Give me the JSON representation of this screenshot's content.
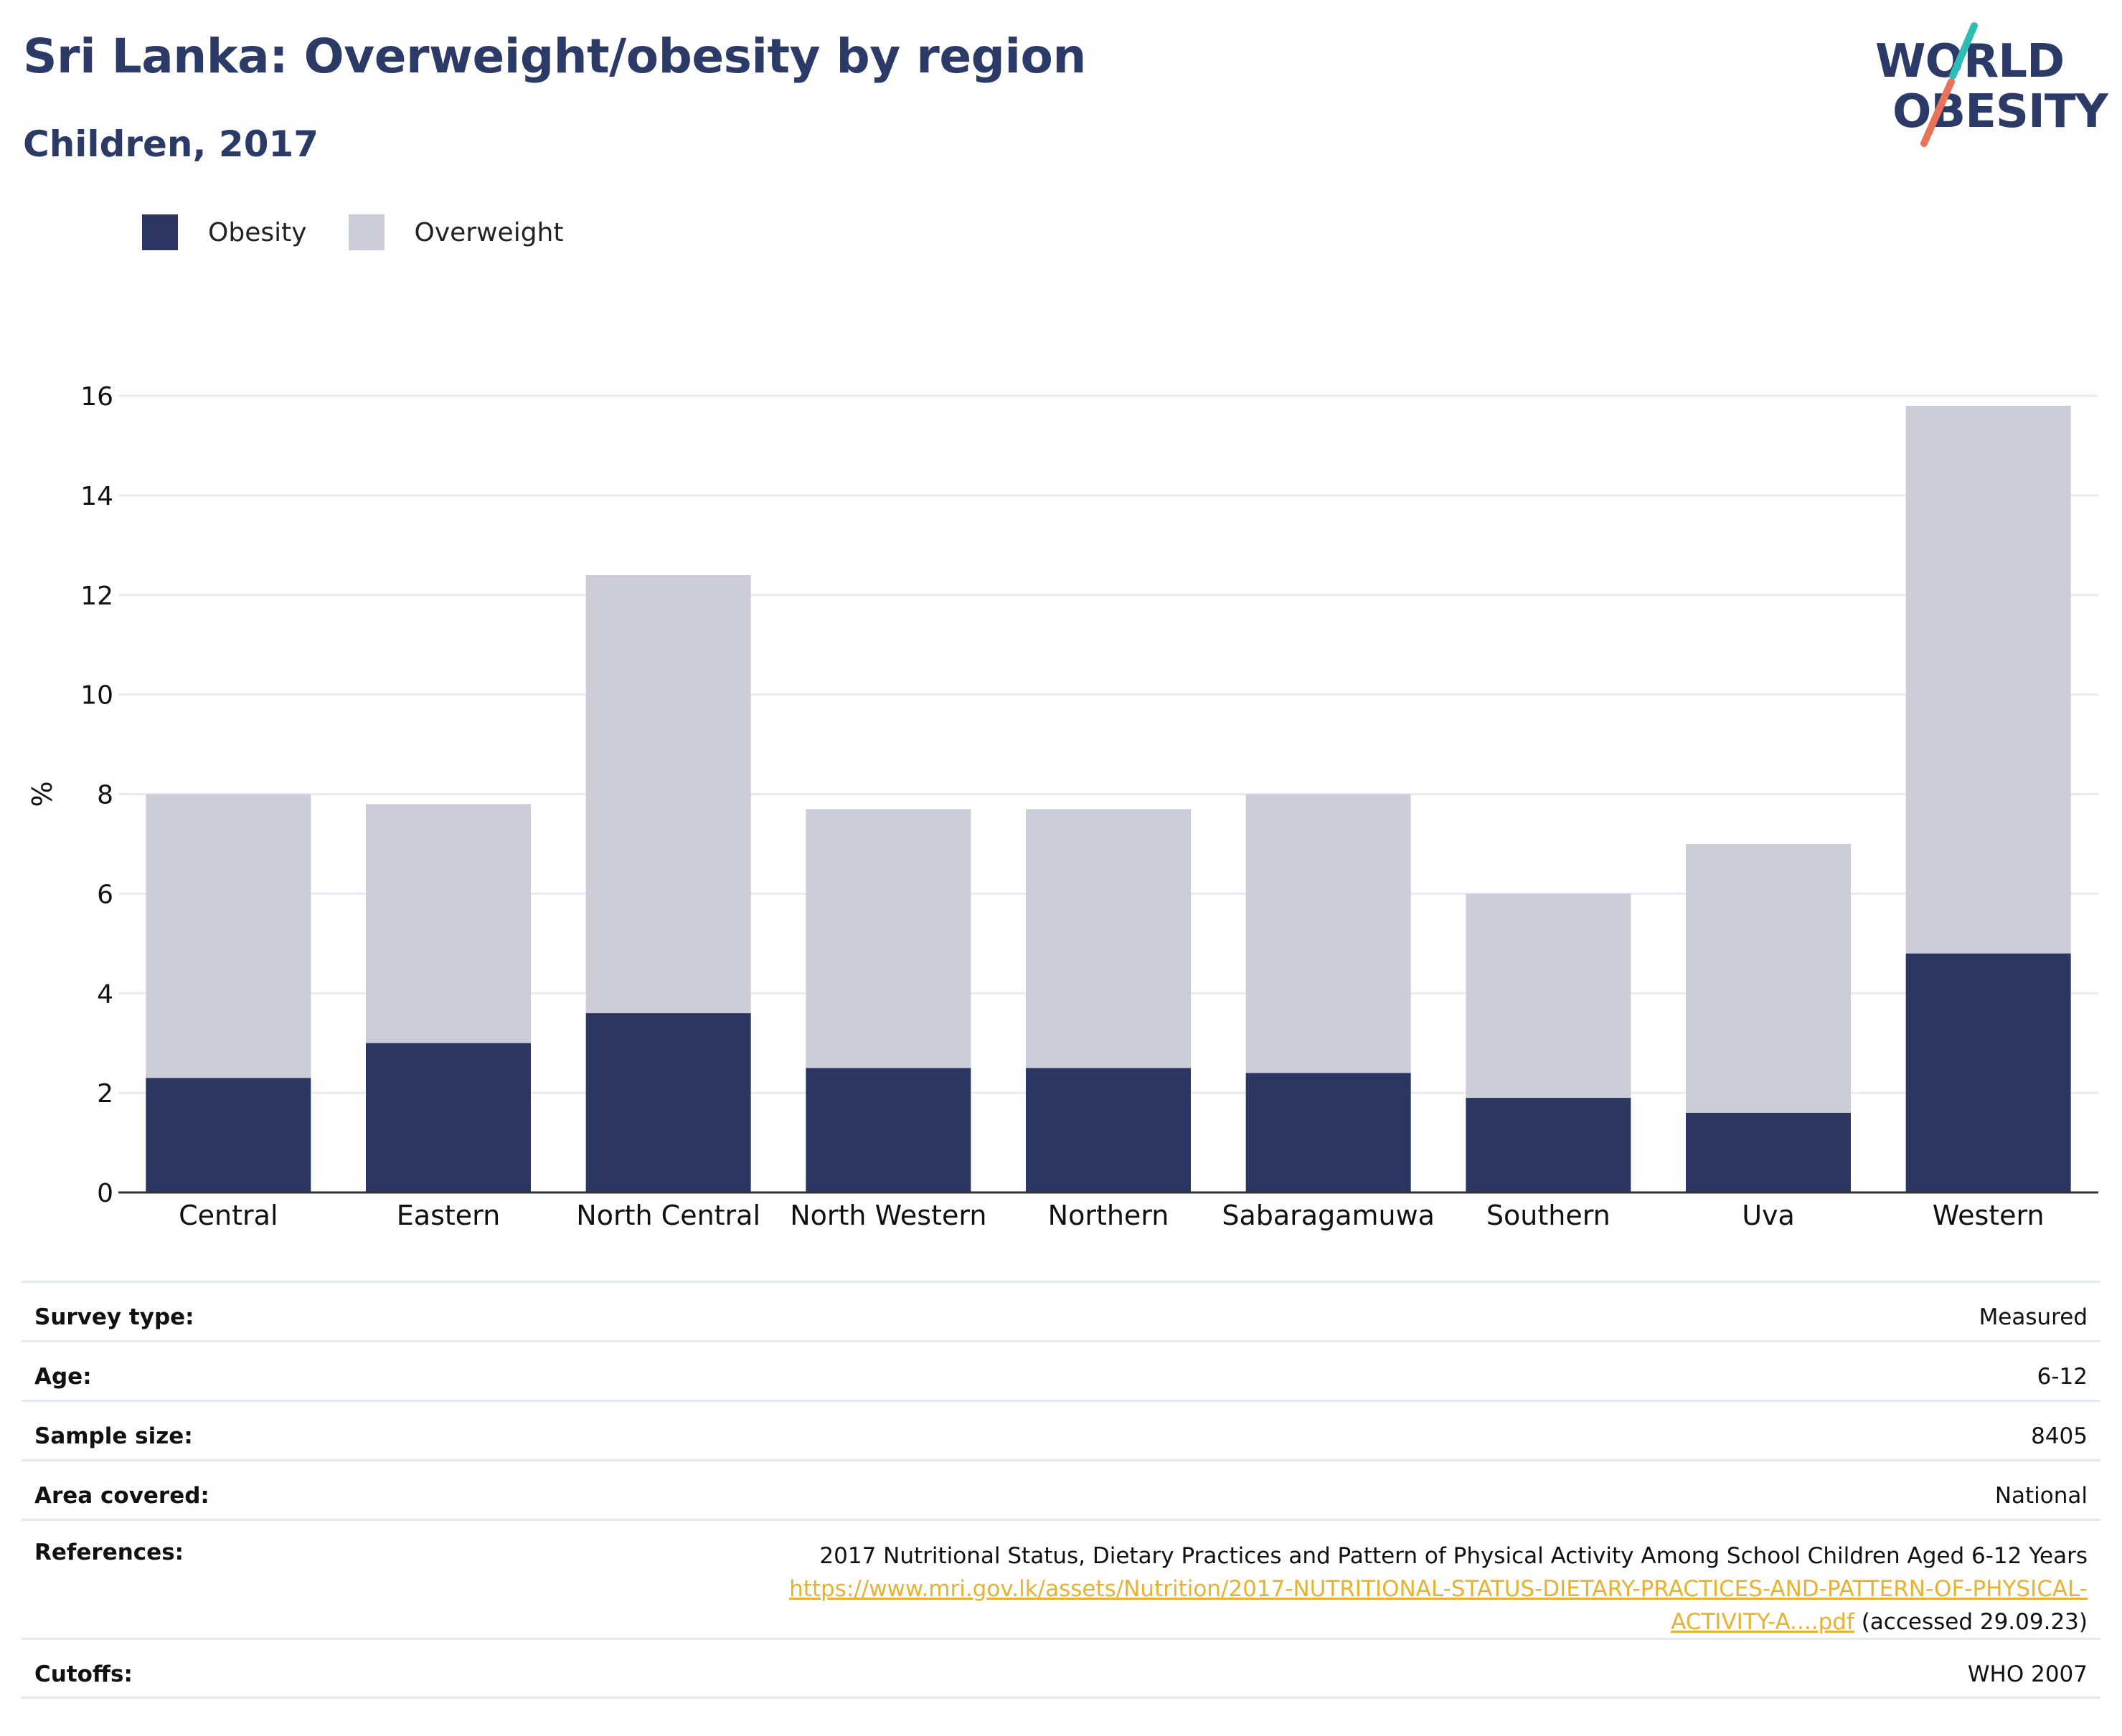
{
  "header": {
    "title": "Sri Lanka: Overweight/obesity by region",
    "subtitle": "Children, 2017"
  },
  "logo": {
    "line1": "WORLD",
    "line2": "OBESITY",
    "accent_colors": [
      "#2dbdb6",
      "#e8735a"
    ]
  },
  "colors": {
    "obesity": "#2b3663",
    "overweight": "#cbcdd9",
    "text": "#2b3a67",
    "link": "#e8b230"
  },
  "legend": [
    {
      "label": "Obesity",
      "color": "#2b3663"
    },
    {
      "label": "Overweight",
      "color": "#cbcdd9"
    }
  ],
  "chart_data": {
    "type": "bar",
    "stacked": true,
    "categories": [
      "Central",
      "Eastern",
      "North Central",
      "North Western",
      "Northern",
      "Sabaragamuwa",
      "Southern",
      "Uva",
      "Western"
    ],
    "series": [
      {
        "name": "Obesity",
        "values": [
          2.3,
          3.0,
          3.6,
          2.5,
          2.5,
          2.4,
          1.9,
          1.6,
          4.8
        ]
      },
      {
        "name": "Overweight",
        "values": [
          5.7,
          4.8,
          8.8,
          5.2,
          5.2,
          5.6,
          4.1,
          5.4,
          11.0
        ]
      }
    ],
    "totals": [
      8.0,
      7.8,
      12.4,
      7.7,
      7.7,
      8.0,
      6.0,
      7.0,
      15.8
    ],
    "ylabel": "%",
    "xlabel": "",
    "ylim": [
      0,
      16
    ],
    "yticks": [
      "0",
      "2",
      "4",
      "6",
      "8",
      "10",
      "12",
      "14",
      "16"
    ],
    "grid": true,
    "legend_position": "top-left"
  },
  "info": {
    "survey_type": {
      "label": "Survey type:",
      "value": "Measured"
    },
    "age": {
      "label": "Age:",
      "value": "6-12"
    },
    "sample_size": {
      "label": "Sample size:",
      "value": "8405"
    },
    "area_covered": {
      "label": "Area covered:",
      "value": "National"
    },
    "references": {
      "label": "References:",
      "text": "2017 Nutritional Status, Dietary Practices and Pattern of Physical Activity Among School Children Aged 6-12 Years",
      "link_line1": "https://www.mri.gov.lk/assets/Nutrition/2017-NUTRITIONAL-STATUS-DIETARY-PRACTICES-AND-PATTERN-OF-PHYSICAL-",
      "link_line2": "ACTIVITY-A....pdf",
      "accessed": " (accessed 29.09.23)"
    },
    "cutoffs": {
      "label": "Cutoffs:",
      "value": "WHO 2007"
    }
  }
}
